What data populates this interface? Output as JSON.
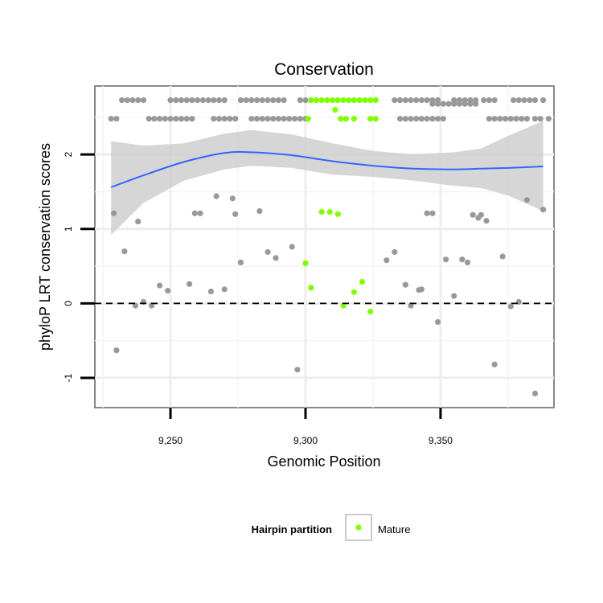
{
  "chart_data": {
    "type": "scatter",
    "title": "Conservation",
    "xlabel": "Genomic Position",
    "ylabel": "phyloP LRT conservation scores",
    "xlim": [
      9222,
      9392
    ],
    "ylim": [
      -1.4,
      2.92
    ],
    "x_ticks": [
      9250,
      9300,
      9350
    ],
    "x_tick_labels": [
      "9,250",
      "9,300",
      "9,350"
    ],
    "y_ticks": [
      -1,
      0,
      1,
      2
    ],
    "y_tick_labels": [
      "-1",
      "0",
      "1",
      "2"
    ],
    "grid": true,
    "reference_line": {
      "y": 0,
      "style": "dashed"
    },
    "legend": {
      "title": "Hairpin partition",
      "position": "bottom",
      "entries": [
        {
          "label": "Mature",
          "color": "#7fff00"
        }
      ]
    },
    "colors": {
      "other": "#999999",
      "mature": "#7fff00",
      "smooth": "#3366ff",
      "ribbon": "#cccccc"
    },
    "series": [
      {
        "name": "",
        "color": "#999999",
        "points": [
          [
            9232,
            2.73
          ],
          [
            9234,
            2.73
          ],
          [
            9236,
            2.73
          ],
          [
            9238,
            2.73
          ],
          [
            9240,
            2.73
          ],
          [
            9250,
            2.73
          ],
          [
            9252,
            2.73
          ],
          [
            9254,
            2.73
          ],
          [
            9256,
            2.73
          ],
          [
            9258,
            2.73
          ],
          [
            9260,
            2.73
          ],
          [
            9262,
            2.73
          ],
          [
            9264,
            2.73
          ],
          [
            9266,
            2.73
          ],
          [
            9268,
            2.73
          ],
          [
            9270,
            2.73
          ],
          [
            9276,
            2.73
          ],
          [
            9278,
            2.73
          ],
          [
            9280,
            2.73
          ],
          [
            9282,
            2.73
          ],
          [
            9284,
            2.73
          ],
          [
            9286,
            2.73
          ],
          [
            9288,
            2.73
          ],
          [
            9290,
            2.73
          ],
          [
            9292,
            2.73
          ],
          [
            9298,
            2.73
          ],
          [
            9300,
            2.73
          ],
          [
            9333,
            2.73
          ],
          [
            9335,
            2.73
          ],
          [
            9337,
            2.73
          ],
          [
            9339,
            2.73
          ],
          [
            9341,
            2.73
          ],
          [
            9343,
            2.73
          ],
          [
            9345,
            2.73
          ],
          [
            9347,
            2.73
          ],
          [
            9349,
            2.73
          ],
          [
            9355,
            2.73
          ],
          [
            9357,
            2.73
          ],
          [
            9359,
            2.73
          ],
          [
            9361,
            2.73
          ],
          [
            9363,
            2.73
          ],
          [
            9366,
            2.73
          ],
          [
            9368,
            2.73
          ],
          [
            9370,
            2.73
          ],
          [
            9377,
            2.73
          ],
          [
            9379,
            2.73
          ],
          [
            9381,
            2.73
          ],
          [
            9383,
            2.73
          ],
          [
            9385,
            2.73
          ],
          [
            9388,
            2.73
          ],
          [
            9228,
            2.48
          ],
          [
            9230,
            2.48
          ],
          [
            9242,
            2.48
          ],
          [
            9244,
            2.48
          ],
          [
            9246,
            2.48
          ],
          [
            9248,
            2.48
          ],
          [
            9250,
            2.48
          ],
          [
            9252,
            2.48
          ],
          [
            9254,
            2.48
          ],
          [
            9256,
            2.48
          ],
          [
            9258,
            2.48
          ],
          [
            9266,
            2.48
          ],
          [
            9268,
            2.48
          ],
          [
            9270,
            2.48
          ],
          [
            9272,
            2.48
          ],
          [
            9274,
            2.48
          ],
          [
            9280,
            2.48
          ],
          [
            9282,
            2.48
          ],
          [
            9284,
            2.48
          ],
          [
            9286,
            2.48
          ],
          [
            9288,
            2.48
          ],
          [
            9290,
            2.48
          ],
          [
            9292,
            2.48
          ],
          [
            9294,
            2.48
          ],
          [
            9296,
            2.48
          ],
          [
            9298,
            2.48
          ],
          [
            9300,
            2.48
          ],
          [
            9335,
            2.48
          ],
          [
            9337,
            2.48
          ],
          [
            9339,
            2.48
          ],
          [
            9341,
            2.48
          ],
          [
            9343,
            2.48
          ],
          [
            9345,
            2.48
          ],
          [
            9347,
            2.48
          ],
          [
            9349,
            2.48
          ],
          [
            9351,
            2.48
          ],
          [
            9368,
            2.48
          ],
          [
            9370,
            2.48
          ],
          [
            9372,
            2.48
          ],
          [
            9374,
            2.48
          ],
          [
            9376,
            2.48
          ],
          [
            9378,
            2.48
          ],
          [
            9380,
            2.48
          ],
          [
            9382,
            2.48
          ],
          [
            9385,
            2.48
          ],
          [
            9387,
            2.48
          ],
          [
            9390,
            2.48
          ],
          [
            9347,
            2.68
          ],
          [
            9349,
            2.68
          ],
          [
            9351,
            2.68
          ],
          [
            9353,
            2.68
          ],
          [
            9355,
            2.68
          ],
          [
            9357,
            2.68
          ],
          [
            9359,
            2.68
          ],
          [
            9361,
            2.68
          ],
          [
            9363,
            2.68
          ],
          [
            9229,
            1.21
          ],
          [
            9233,
            0.7
          ],
          [
            9237,
            -0.03
          ],
          [
            9238,
            1.1
          ],
          [
            9240,
            0.02
          ],
          [
            9243,
            -0.03
          ],
          [
            9246,
            0.24
          ],
          [
            9249,
            0.17
          ],
          [
            9257,
            0.26
          ],
          [
            9259,
            1.21
          ],
          [
            9261,
            1.21
          ],
          [
            9265,
            0.16
          ],
          [
            9267,
            1.44
          ],
          [
            9270,
            0.19
          ],
          [
            9273,
            1.41
          ],
          [
            9274,
            1.2
          ],
          [
            9276,
            0.55
          ],
          [
            9283,
            1.24
          ],
          [
            9286,
            0.69
          ],
          [
            9289,
            0.61
          ],
          [
            9295,
            0.76
          ],
          [
            9297,
            -0.89
          ],
          [
            9330,
            0.58
          ],
          [
            9333,
            0.69
          ],
          [
            9337,
            0.25
          ],
          [
            9339,
            -0.03
          ],
          [
            9342,
            0.18
          ],
          [
            9343,
            0.19
          ],
          [
            9345,
            1.21
          ],
          [
            9347,
            1.21
          ],
          [
            9349,
            -0.25
          ],
          [
            9352,
            0.59
          ],
          [
            9355,
            0.1
          ],
          [
            9358,
            0.59
          ],
          [
            9360,
            0.55
          ],
          [
            9362,
            1.19
          ],
          [
            9364,
            1.15
          ],
          [
            9365,
            1.19
          ],
          [
            9367,
            1.11
          ],
          [
            9370,
            -0.82
          ],
          [
            9373,
            0.63
          ],
          [
            9376,
            -0.04
          ],
          [
            9379,
            0.02
          ],
          [
            9382,
            1.39
          ],
          [
            9385,
            -1.21
          ],
          [
            9388,
            1.26
          ],
          [
            9230,
            -0.63
          ]
        ]
      },
      {
        "name": "Mature",
        "color": "#7fff00",
        "points": [
          [
            9302,
            2.73
          ],
          [
            9304,
            2.73
          ],
          [
            9306,
            2.73
          ],
          [
            9308,
            2.73
          ],
          [
            9310,
            2.73
          ],
          [
            9312,
            2.73
          ],
          [
            9314,
            2.73
          ],
          [
            9316,
            2.73
          ],
          [
            9318,
            2.73
          ],
          [
            9320,
            2.73
          ],
          [
            9322,
            2.73
          ],
          [
            9324,
            2.73
          ],
          [
            9326,
            2.73
          ],
          [
            9301,
            2.48
          ],
          [
            9313,
            2.48
          ],
          [
            9315,
            2.48
          ],
          [
            9318,
            2.48
          ],
          [
            9324,
            2.48
          ],
          [
            9326,
            2.48
          ],
          [
            9311,
            2.6
          ],
          [
            9306,
            1.23
          ],
          [
            9309,
            1.23
          ],
          [
            9312,
            1.2
          ],
          [
            9300,
            0.54
          ],
          [
            9302,
            0.21
          ],
          [
            9314,
            -0.03
          ],
          [
            9318,
            0.15
          ],
          [
            9321,
            0.29
          ],
          [
            9324,
            -0.11
          ]
        ]
      }
    ],
    "smooth_fit": {
      "x": [
        9228,
        9240,
        9255,
        9270,
        9280,
        9295,
        9310,
        9325,
        9340,
        9355,
        9365,
        9375,
        9388
      ],
      "y": [
        1.56,
        1.72,
        1.9,
        2.02,
        2.03,
        1.99,
        1.91,
        1.85,
        1.81,
        1.8,
        1.81,
        1.82,
        1.84
      ],
      "lower": [
        0.92,
        1.35,
        1.65,
        1.8,
        1.85,
        1.82,
        1.73,
        1.7,
        1.65,
        1.58,
        1.55,
        1.45,
        1.24
      ],
      "upper": [
        2.18,
        2.12,
        2.15,
        2.28,
        2.33,
        2.27,
        2.15,
        2.05,
        2.0,
        2.03,
        2.08,
        2.25,
        2.45
      ]
    }
  }
}
